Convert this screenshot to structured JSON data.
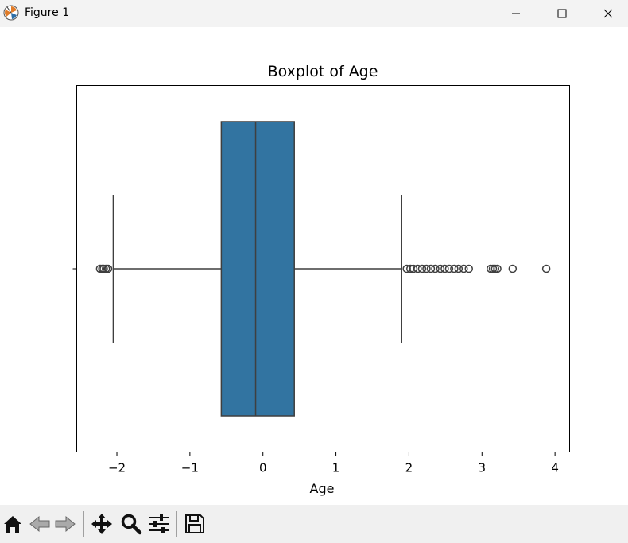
{
  "window": {
    "title": "Figure 1",
    "icon": "matplotlib-icon",
    "controls": [
      "minimize-icon",
      "maximize-icon",
      "close-icon"
    ]
  },
  "toolbar": {
    "buttons": [
      {
        "name": "home-button",
        "icon": "home-icon"
      },
      {
        "name": "back-button",
        "icon": "back-arrow-icon"
      },
      {
        "name": "forward-button",
        "icon": "forward-arrow-icon"
      },
      {
        "name": "pan-button",
        "icon": "move-icon"
      },
      {
        "name": "zoom-button",
        "icon": "magnifier-icon"
      },
      {
        "name": "configure-subplots-button",
        "icon": "sliders-icon"
      },
      {
        "name": "save-button",
        "icon": "floppy-disk-icon"
      }
    ]
  },
  "chart_data": {
    "type": "box",
    "orientation": "horizontal",
    "title": "Boxplot of Age",
    "xlabel": "Age",
    "ylabel": "",
    "xlim": [
      -2.55,
      4.2
    ],
    "xticks": [
      -2,
      -1,
      0,
      1,
      2,
      3,
      4
    ],
    "xtick_labels": [
      "−2",
      "−1",
      "0",
      "1",
      "2",
      "3",
      "4"
    ],
    "box_color": "#3274a1",
    "edge_color": "#3f3f3f",
    "box": {
      "whisker_low": -2.05,
      "q1": -0.57,
      "median": -0.1,
      "q3": 0.43,
      "whisker_high": 1.9
    },
    "outliers": [
      -2.23,
      -2.2,
      -2.18,
      -2.15,
      -2.12,
      1.97,
      2.02,
      2.06,
      2.12,
      2.18,
      2.24,
      2.3,
      2.36,
      2.43,
      2.49,
      2.55,
      2.62,
      2.68,
      2.75,
      2.82,
      3.12,
      3.15,
      3.18,
      3.21,
      3.42,
      3.88
    ]
  }
}
